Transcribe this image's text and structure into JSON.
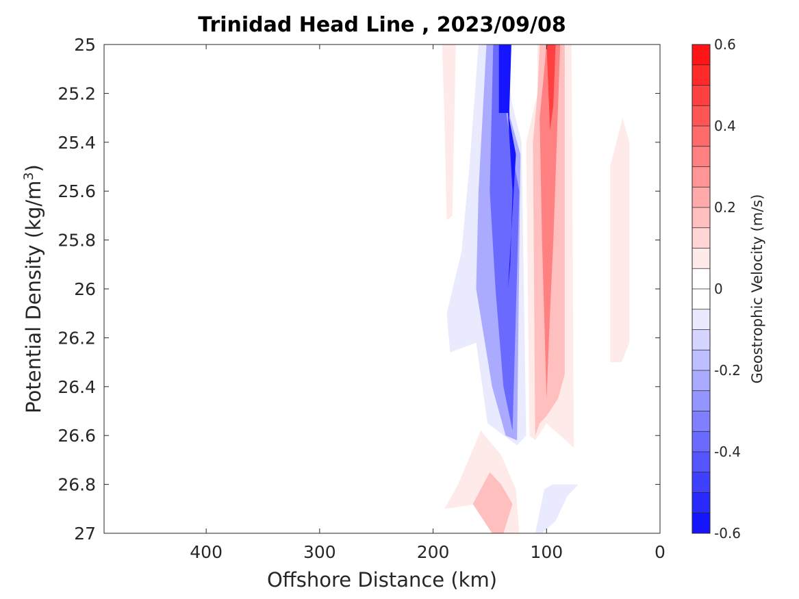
{
  "chart_data": {
    "type": "heatmap",
    "subtype": "filled-contour",
    "title": "Trinidad Head Line , 2023/09/08",
    "xlabel": "Offshore Distance (km)",
    "ylabel_main": "Potential Density (kg/m",
    "ylabel_sup": "3",
    "ylabel_end": ")",
    "colorbar_label": "Geostrophic Velocity (m/s)",
    "x_axis": {
      "reversed": true,
      "xlim": [
        0,
        490
      ],
      "ticks": [
        0,
        100,
        200,
        300,
        400
      ],
      "tick_labels": [
        "0",
        "100",
        "200",
        "300",
        "400"
      ]
    },
    "y_axis": {
      "reversed": true,
      "ylim": [
        25,
        27
      ],
      "ticks": [
        25,
        25.2,
        25.4,
        25.6,
        25.8,
        26,
        26.2,
        26.4,
        26.6,
        26.8,
        27
      ],
      "tick_labels": [
        "25",
        "25.2",
        "25.4",
        "25.6",
        "25.8",
        "26",
        "26.2",
        "26.4",
        "26.6",
        "26.8",
        "27"
      ]
    },
    "colorbar": {
      "clim": [
        -0.6,
        0.6
      ],
      "step": 0.05,
      "ticks": [
        -0.6,
        -0.4,
        -0.2,
        0,
        0.2,
        0.4,
        0.6
      ],
      "tick_labels": [
        "-0.6",
        "-0.4",
        "-0.2",
        "0",
        "0.2",
        "0.4",
        "0.6"
      ],
      "negative_color": "#0000ff",
      "zero_color": "#ffffff",
      "positive_color": "#ff0000"
    },
    "contour_regions": [
      {
        "name": "offshore-positive-band",
        "value": 0.05,
        "polygon": [
          [
            192,
            25
          ],
          [
            180,
            25
          ],
          [
            183,
            25.7
          ],
          [
            188,
            25.72
          ],
          [
            190,
            25.3
          ]
        ]
      },
      {
        "name": "southward-jet-weak",
        "value": -0.05,
        "polygon": [
          [
            160,
            25
          ],
          [
            168,
            25.5
          ],
          [
            175,
            25.85
          ],
          [
            188,
            26.1
          ],
          [
            185,
            26.26
          ],
          [
            162,
            26.22
          ],
          [
            152,
            26.55
          ],
          [
            126,
            26.64
          ],
          [
            118,
            26.6
          ],
          [
            122,
            25.4
          ],
          [
            130,
            25.25
          ],
          [
            140,
            25
          ]
        ]
      },
      {
        "name": "southward-jet-mid",
        "value": -0.2,
        "polygon": [
          [
            153,
            25
          ],
          [
            160,
            25.6
          ],
          [
            162,
            26.0
          ],
          [
            148,
            26.4
          ],
          [
            136,
            26.6
          ],
          [
            126,
            26.62
          ],
          [
            123,
            25.45
          ],
          [
            132,
            25.3
          ],
          [
            140,
            25
          ]
        ]
      },
      {
        "name": "southward-jet-strong",
        "value": -0.35,
        "polygon": [
          [
            147,
            25
          ],
          [
            150,
            25.6
          ],
          [
            145,
            26.0
          ],
          [
            138,
            26.4
          ],
          [
            130,
            26.58
          ],
          [
            124,
            25.6
          ],
          [
            128,
            25.5
          ],
          [
            135,
            25.3
          ],
          [
            141,
            25
          ]
        ]
      },
      {
        "name": "southward-jet-core",
        "value": -0.55,
        "polygon": [
          [
            142,
            25
          ],
          [
            142,
            25.28
          ],
          [
            134,
            25.28
          ],
          [
            130,
            25.6
          ],
          [
            132,
            25.9
          ],
          [
            134,
            26.0
          ],
          [
            127,
            25.45
          ],
          [
            133,
            25.3
          ],
          [
            131,
            25
          ]
        ]
      },
      {
        "name": "northward-jet-weak",
        "value": 0.05,
        "polygon": [
          [
            108,
            25
          ],
          [
            78,
            25
          ],
          [
            76,
            26.65
          ],
          [
            88,
            26.6
          ],
          [
            100,
            26.55
          ],
          [
            110,
            26.62
          ],
          [
            115,
            26.6
          ],
          [
            118,
            25.4
          ],
          [
            108,
            25.2
          ]
        ]
      },
      {
        "name": "northward-jet-mid",
        "value": 0.15,
        "polygon": [
          [
            106,
            25
          ],
          [
            84,
            25
          ],
          [
            84,
            26.35
          ],
          [
            90,
            26.45
          ],
          [
            100,
            26.52
          ],
          [
            106,
            26.55
          ],
          [
            110,
            26.6
          ],
          [
            112,
            25.4
          ],
          [
            108,
            25.2
          ]
        ]
      },
      {
        "name": "northward-jet-strong",
        "value": 0.3,
        "polygon": [
          [
            100,
            25
          ],
          [
            88,
            25
          ],
          [
            94,
            25.8
          ],
          [
            97,
            26.1
          ],
          [
            100,
            26.45
          ],
          [
            104,
            25.8
          ],
          [
            106,
            25.3
          ],
          [
            102,
            25.1
          ]
        ]
      },
      {
        "name": "northward-jet-core",
        "value": 0.45,
        "polygon": [
          [
            100,
            25
          ],
          [
            92,
            25
          ],
          [
            94,
            25.25
          ],
          [
            97,
            25.35
          ]
        ]
      },
      {
        "name": "nearshore-positive-band",
        "value": 0.05,
        "polygon": [
          [
            33,
            25.3
          ],
          [
            27,
            25.4
          ],
          [
            27,
            26.22
          ],
          [
            34,
            26.3
          ],
          [
            44,
            26.3
          ],
          [
            44,
            25.5
          ]
        ]
      },
      {
        "name": "deep-positive-lobe-weak",
        "value": 0.05,
        "polygon": [
          [
            158,
            26.58
          ],
          [
            178,
            26.8
          ],
          [
            190,
            26.9
          ],
          [
            160,
            26.88
          ],
          [
            140,
            27
          ],
          [
            124,
            27
          ],
          [
            127,
            26.82
          ],
          [
            140,
            26.68
          ]
        ]
      },
      {
        "name": "deep-positive-lobe-mid",
        "value": 0.15,
        "polygon": [
          [
            150,
            26.75
          ],
          [
            165,
            26.88
          ],
          [
            148,
            27
          ],
          [
            138,
            27
          ],
          [
            130,
            26.88
          ],
          [
            140,
            26.8
          ]
        ]
      },
      {
        "name": "deep-negative-lobe",
        "value": -0.05,
        "polygon": [
          [
            95,
            26.8
          ],
          [
            72,
            26.8
          ],
          [
            82,
            26.85
          ],
          [
            92,
            26.95
          ],
          [
            104,
            27
          ],
          [
            110,
            27
          ],
          [
            102,
            26.82
          ]
        ]
      }
    ]
  }
}
